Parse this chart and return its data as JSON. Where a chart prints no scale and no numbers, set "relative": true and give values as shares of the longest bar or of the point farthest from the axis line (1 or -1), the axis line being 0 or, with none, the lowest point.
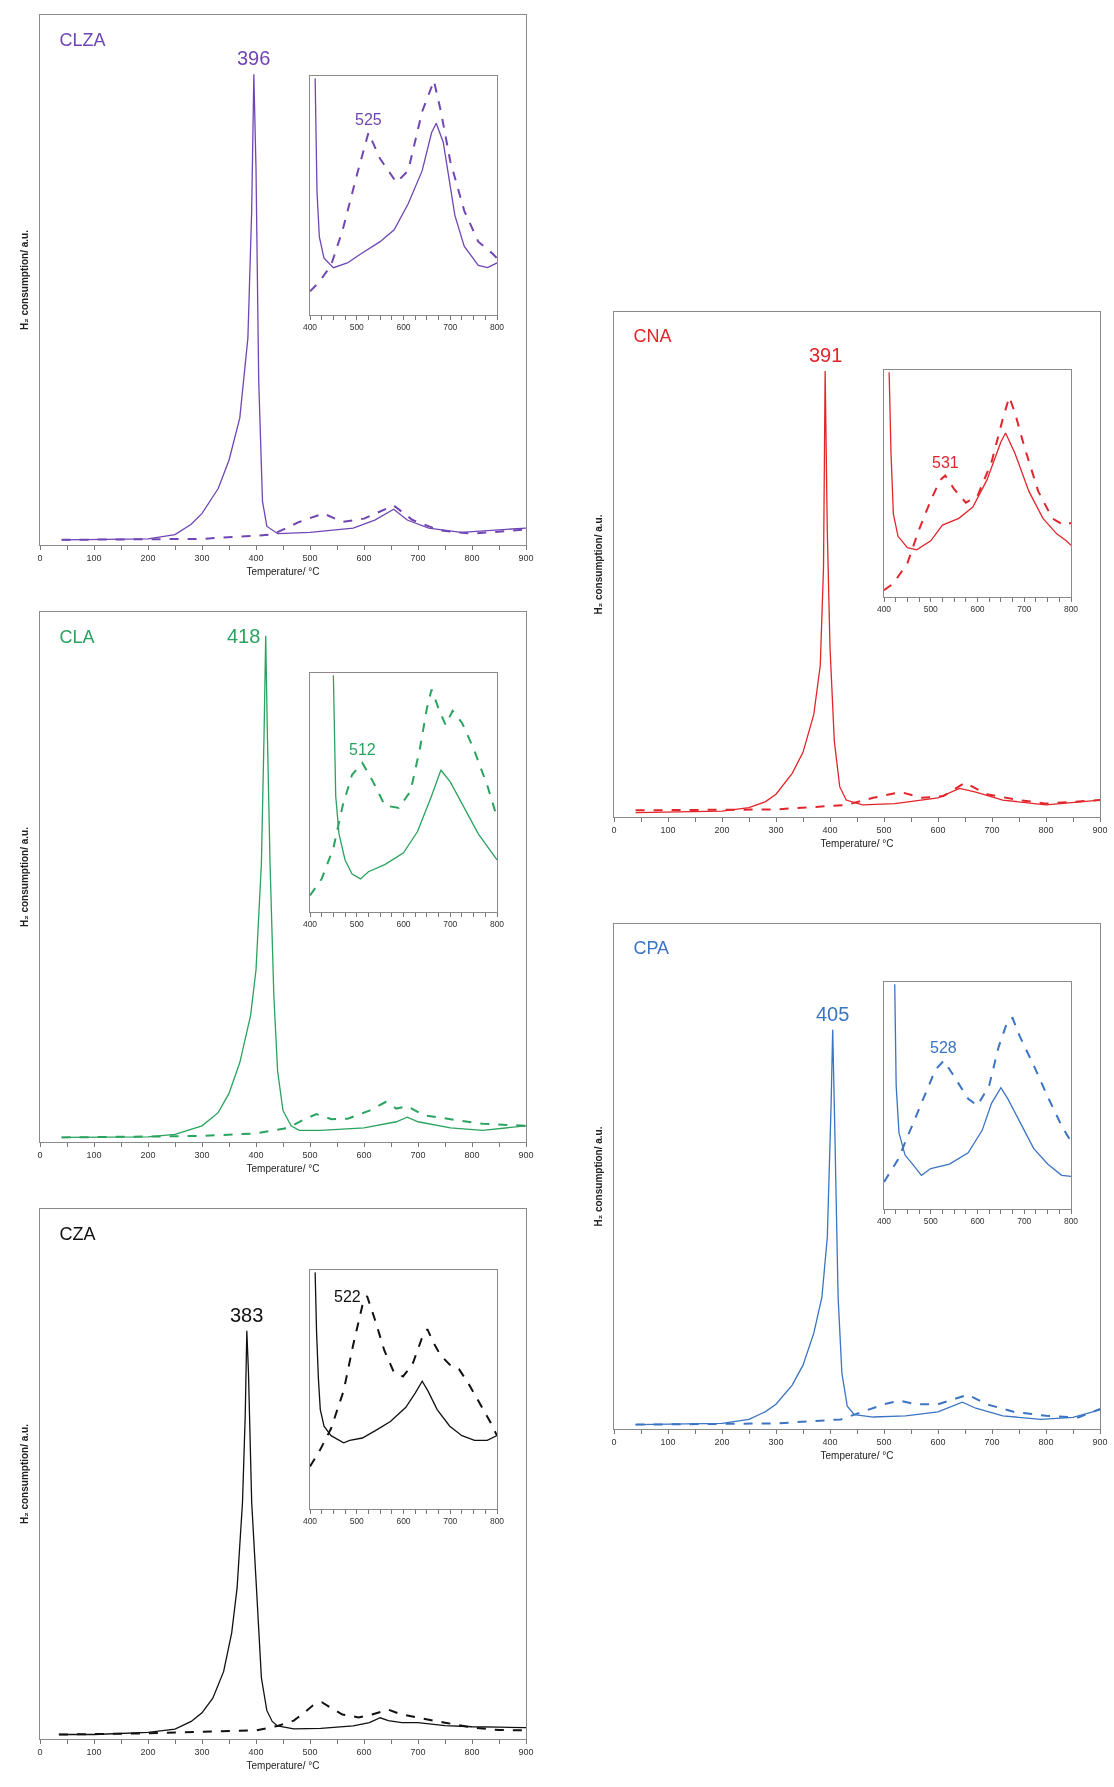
{
  "chart_data": [
    {
      "type": "line",
      "title": "CZA",
      "xlabel": "Temperature/ °C",
      "ylabel": "H₂ consumption/ a.u.",
      "relative": true,
      "xlim": [
        0,
        900
      ],
      "xticks": [
        0,
        {
          "value": 50,
          "label": null
        },
        100,
        {
          "value": 150,
          "label": null
        },
        200,
        {
          "value": 250,
          "label": null
        },
        300,
        {
          "value": 350,
          "label": null
        },
        400,
        {
          "value": 450,
          "label": null
        },
        500,
        {
          "value": 550,
          "label": null
        },
        600,
        {
          "value": 650,
          "label": null
        },
        700,
        {
          "value": 750,
          "label": null
        },
        800,
        {
          "value": 850,
          "label": null
        },
        900
      ],
      "series": [
        {
          "color": "#111111",
          "line_style": "solid",
          "x": [
            35,
            100,
            200,
            250,
            280,
            300,
            320,
            340,
            355,
            365,
            375,
            380,
            383,
            386,
            392,
            400,
            410,
            420,
            430,
            440,
            470,
            520,
            580,
            610,
            630,
            645,
            670,
            700,
            750,
            800,
            850,
            900
          ],
          "values": [
            0.011,
            0.011,
            0.016,
            0.024,
            0.043,
            0.064,
            0.1,
            0.165,
            0.26,
            0.37,
            0.58,
            0.79,
            1,
            0.9,
            0.58,
            0.39,
            0.15,
            0.07,
            0.043,
            0.032,
            0.025,
            0.026,
            0.032,
            0.04,
            0.052,
            0.045,
            0.04,
            0.04,
            0.033,
            0.03,
            0.029,
            0.028
          ]
        },
        {
          "color": "#111111",
          "line_style": "dashed",
          "x": [
            35,
            200,
            300,
            400,
            440,
            470,
            490,
            505,
            522,
            540,
            560,
            590,
            615,
            645,
            665,
            700,
            750,
            800,
            850,
            900
          ],
          "values": [
            0.011,
            0.014,
            0.018,
            0.021,
            0.032,
            0.045,
            0.065,
            0.082,
            0.09,
            0.075,
            0.06,
            0.053,
            0.06,
            0.072,
            0.062,
            0.052,
            0.04,
            0.028,
            0.022,
            0.021
          ]
        }
      ],
      "annotations": [
        {
          "text": "383",
          "x": 383,
          "y": 1
        }
      ]
    },
    {
      "type": "line",
      "relative": true,
      "xlim": [
        400,
        800
      ],
      "xticks": [
        400,
        {
          "value": 425,
          "label": null
        },
        {
          "value": 450,
          "label": null
        },
        {
          "value": 475,
          "label": null
        },
        500,
        {
          "value": 525,
          "label": null
        },
        {
          "value": 550,
          "label": null
        },
        {
          "value": 575,
          "label": null
        },
        600,
        {
          "value": 625,
          "label": null
        },
        {
          "value": 650,
          "label": null
        },
        {
          "value": 675,
          "label": null
        },
        700,
        {
          "value": 725,
          "label": null
        },
        {
          "value": 750,
          "label": null
        },
        {
          "value": 775,
          "label": null
        },
        800
      ],
      "series": [
        {
          "color": "#111111",
          "line_style": "solid",
          "x": [
            411,
            414,
            418,
            422,
            430,
            445,
            472,
            485,
            512,
            539,
            572,
            605,
            625,
            640,
            652,
            672,
            699,
            725,
            752,
            779,
            800
          ],
          "values": [
            1,
            0.75,
            0.55,
            0.42,
            0.35,
            0.31,
            0.28,
            0.29,
            0.3,
            0.33,
            0.37,
            0.43,
            0.49,
            0.54,
            0.5,
            0.42,
            0.35,
            0.31,
            0.29,
            0.29,
            0.31
          ]
        },
        {
          "color": "#111111",
          "line_style": "dashed",
          "x": [
            400,
            419,
            445,
            472,
            492,
            512,
            522,
            539,
            559,
            579,
            599,
            619,
            639,
            651,
            665,
            679,
            699,
            719,
            739,
            765,
            785,
            800
          ],
          "values": [
            0.18,
            0.24,
            0.34,
            0.5,
            0.69,
            0.86,
            0.9,
            0.8,
            0.67,
            0.58,
            0.56,
            0.61,
            0.72,
            0.76,
            0.7,
            0.65,
            0.61,
            0.59,
            0.53,
            0.44,
            0.37,
            0.31
          ]
        }
      ],
      "annotations": [
        {
          "text": "522",
          "x": 522,
          "y": 0.9
        }
      ]
    },
    {
      "type": "line",
      "title": "CLA",
      "xlabel": "Temperature/ °C",
      "ylabel": "H₂ consumption/ a.u.",
      "relative": true,
      "xlim": [
        0,
        900
      ],
      "xticks": [
        0,
        {
          "value": 50,
          "label": null
        },
        100,
        {
          "value": 150,
          "label": null
        },
        200,
        {
          "value": 250,
          "label": null
        },
        300,
        {
          "value": 350,
          "label": null
        },
        400,
        {
          "value": 450,
          "label": null
        },
        500,
        {
          "value": 550,
          "label": null
        },
        600,
        {
          "value": 650,
          "label": null
        },
        700,
        {
          "value": 750,
          "label": null
        },
        800,
        {
          "value": 850,
          "label": null
        },
        900
      ],
      "series": [
        {
          "color": "#2aa35f",
          "line_style": "solid",
          "x": [
            40,
            200,
            250,
            300,
            330,
            350,
            370,
            390,
            400,
            410,
            415,
            418,
            421,
            426,
            433,
            440,
            450,
            465,
            480,
            520,
            600,
            660,
            680,
            700,
            760,
            820,
            900
          ],
          "values": [
            0.009,
            0.01,
            0.015,
            0.032,
            0.058,
            0.096,
            0.157,
            0.25,
            0.34,
            0.55,
            0.81,
            1,
            0.81,
            0.55,
            0.29,
            0.14,
            0.062,
            0.032,
            0.023,
            0.023,
            0.028,
            0.04,
            0.049,
            0.04,
            0.028,
            0.023,
            0.032
          ]
        },
        {
          "color": "#2aa35f",
          "line_style": "dashed",
          "x": [
            40,
            300,
            400,
            460,
            490,
            512,
            540,
            570,
            610,
            640,
            660,
            680,
            710,
            760,
            820,
            900
          ],
          "values": [
            0.009,
            0.012,
            0.017,
            0.028,
            0.045,
            0.055,
            0.045,
            0.046,
            0.062,
            0.079,
            0.066,
            0.071,
            0.053,
            0.045,
            0.036,
            0.032
          ]
        }
      ],
      "annotations": [
        {
          "text": "418",
          "x": 418,
          "y": 1
        }
      ]
    },
    {
      "type": "line",
      "relative": true,
      "xlim": [
        400,
        800
      ],
      "xticks": [
        400,
        {
          "value": 425,
          "label": null
        },
        {
          "value": 450,
          "label": null
        },
        {
          "value": 475,
          "label": null
        },
        500,
        {
          "value": 525,
          "label": null
        },
        {
          "value": 550,
          "label": null
        },
        {
          "value": 575,
          "label": null
        },
        600,
        {
          "value": 625,
          "label": null
        },
        {
          "value": 650,
          "label": null
        },
        {
          "value": 675,
          "label": null
        },
        700,
        {
          "value": 725,
          "label": null
        },
        {
          "value": 750,
          "label": null
        },
        {
          "value": 775,
          "label": null
        },
        800
      ],
      "series": [
        {
          "color": "#2aa35f",
          "line_style": "solid",
          "x": [
            450,
            455,
            462,
            475,
            490,
            508,
            525,
            560,
            600,
            630,
            660,
            680,
            700,
            730,
            760,
            800
          ],
          "values": [
            1,
            0.49,
            0.33,
            0.22,
            0.16,
            0.14,
            0.17,
            0.2,
            0.25,
            0.34,
            0.49,
            0.6,
            0.55,
            0.44,
            0.33,
            0.22
          ]
        },
        {
          "color": "#2aa35f",
          "line_style": "dashed",
          "x": [
            400,
            425,
            450,
            470,
            490,
            512,
            535,
            560,
            590,
            615,
            635,
            650,
            660,
            675,
            690,
            705,
            725,
            750,
            780,
            800
          ],
          "values": [
            0.07,
            0.14,
            0.27,
            0.45,
            0.58,
            0.63,
            0.55,
            0.45,
            0.44,
            0.51,
            0.69,
            0.86,
            0.94,
            0.86,
            0.79,
            0.85,
            0.8,
            0.69,
            0.53,
            0.4
          ]
        }
      ],
      "annotations": [
        {
          "text": "512",
          "x": 512,
          "y": 0.63
        }
      ]
    },
    {
      "type": "line",
      "title": "CLZA",
      "xlabel": "Temperature/ °C",
      "ylabel": "H₂ consumption/ a.u.",
      "relative": true,
      "xlim": [
        0,
        900
      ],
      "xticks": [
        0,
        {
          "value": 50,
          "label": null
        },
        100,
        {
          "value": 150,
          "label": null
        },
        200,
        {
          "value": 250,
          "label": null
        },
        300,
        {
          "value": 350,
          "label": null
        },
        400,
        {
          "value": 450,
          "label": null
        },
        500,
        {
          "value": 550,
          "label": null
        },
        600,
        {
          "value": 650,
          "label": null
        },
        700,
        {
          "value": 750,
          "label": null
        },
        800,
        {
          "value": 850,
          "label": null
        },
        900
      ],
      "series": [
        {
          "color": "#7046b4",
          "line_style": "solid",
          "x": [
            40,
            200,
            250,
            280,
            300,
            330,
            350,
            370,
            385,
            392,
            396,
            400,
            405,
            412,
            420,
            440,
            500,
            580,
            620,
            655,
            680,
            720,
            780,
            900
          ],
          "values": [
            0.011,
            0.013,
            0.022,
            0.044,
            0.067,
            0.12,
            0.18,
            0.27,
            0.44,
            0.71,
            1,
            0.8,
            0.35,
            0.093,
            0.04,
            0.024,
            0.027,
            0.036,
            0.053,
            0.076,
            0.053,
            0.036,
            0.027,
            0.036
          ]
        },
        {
          "color": "#7046b4",
          "line_style": "dashed",
          "x": [
            40,
            300,
            430,
            480,
            525,
            560,
            600,
            655,
            690,
            740,
            800,
            900
          ],
          "values": [
            0.011,
            0.013,
            0.022,
            0.049,
            0.067,
            0.049,
            0.056,
            0.084,
            0.053,
            0.031,
            0.024,
            0.033
          ]
        }
      ],
      "annotations": [
        {
          "text": "396",
          "x": 396,
          "y": 1
        }
      ]
    },
    {
      "type": "line",
      "relative": true,
      "xlim": [
        400,
        800
      ],
      "xticks": [
        400,
        {
          "value": 425,
          "label": null
        },
        {
          "value": 450,
          "label": null
        },
        {
          "value": 475,
          "label": null
        },
        500,
        {
          "value": 525,
          "label": null
        },
        {
          "value": 550,
          "label": null
        },
        {
          "value": 575,
          "label": null
        },
        600,
        {
          "value": 625,
          "label": null
        },
        {
          "value": 650,
          "label": null
        },
        {
          "value": 675,
          "label": null
        },
        700,
        {
          "value": 725,
          "label": null
        },
        {
          "value": 750,
          "label": null
        },
        {
          "value": 775,
          "label": null
        },
        800
      ],
      "series": [
        {
          "color": "#7046b4",
          "line_style": "solid",
          "x": [
            411,
            415,
            420,
            430,
            450,
            480,
            510,
            550,
            580,
            610,
            640,
            660,
            670,
            685,
            710,
            730,
            760,
            780,
            800
          ],
          "values": [
            1,
            0.52,
            0.33,
            0.24,
            0.2,
            0.22,
            0.26,
            0.31,
            0.36,
            0.47,
            0.61,
            0.77,
            0.81,
            0.73,
            0.42,
            0.29,
            0.21,
            0.2,
            0.22
          ]
        },
        {
          "color": "#7046b4",
          "line_style": "dashed",
          "x": [
            400,
            420,
            445,
            470,
            500,
            525,
            550,
            585,
            610,
            640,
            665,
            680,
            700,
            730,
            760,
            790,
            800
          ],
          "values": [
            0.1,
            0.14,
            0.21,
            0.36,
            0.59,
            0.77,
            0.66,
            0.56,
            0.61,
            0.86,
            0.99,
            0.86,
            0.65,
            0.44,
            0.31,
            0.26,
            0.24
          ]
        }
      ],
      "annotations": [
        {
          "text": "525",
          "x": 525,
          "y": 0.77
        }
      ]
    },
    {
      "type": "line",
      "title": "CPA",
      "xlabel": "Temperature/ °C",
      "ylabel": "H₂ consumption/ a.u.",
      "relative": true,
      "xlim": [
        0,
        900
      ],
      "xticks": [
        0,
        {
          "value": 50,
          "label": null
        },
        100,
        {
          "value": 150,
          "label": null
        },
        200,
        {
          "value": 250,
          "label": null
        },
        300,
        {
          "value": 350,
          "label": null
        },
        400,
        {
          "value": 450,
          "label": null
        },
        500,
        {
          "value": 550,
          "label": null
        },
        600,
        {
          "value": 650,
          "label": null
        },
        700,
        {
          "value": 750,
          "label": null
        },
        800,
        {
          "value": 850,
          "label": null
        },
        900
      ],
      "series": [
        {
          "color": "#3b74c2",
          "line_style": "solid",
          "x": [
            40,
            200,
            250,
            280,
            300,
            330,
            350,
            370,
            385,
            395,
            402,
            405,
            408,
            415,
            422,
            432,
            445,
            480,
            540,
            600,
            645,
            670,
            720,
            790,
            850,
            900
          ],
          "values": [
            0.011,
            0.014,
            0.024,
            0.043,
            0.062,
            0.11,
            0.16,
            0.24,
            0.33,
            0.48,
            0.81,
            1,
            0.81,
            0.33,
            0.14,
            0.057,
            0.036,
            0.03,
            0.033,
            0.043,
            0.067,
            0.052,
            0.033,
            0.024,
            0.029,
            0.048
          ]
        },
        {
          "color": "#3b74c2",
          "line_style": "dashed",
          "x": [
            40,
            300,
            420,
            460,
            500,
            528,
            560,
            600,
            655,
            690,
            740,
            800,
            860,
            900
          ],
          "values": [
            0.011,
            0.014,
            0.024,
            0.043,
            0.062,
            0.071,
            0.062,
            0.062,
            0.086,
            0.062,
            0.043,
            0.033,
            0.029,
            0.05
          ]
        }
      ],
      "annotations": [
        {
          "text": "405",
          "x": 405,
          "y": 1
        }
      ]
    },
    {
      "type": "line",
      "relative": true,
      "xlim": [
        400,
        800
      ],
      "xticks": [
        400,
        {
          "value": 425,
          "label": null
        },
        {
          "value": 450,
          "label": null
        },
        {
          "value": 475,
          "label": null
        },
        500,
        {
          "value": 525,
          "label": null
        },
        {
          "value": 550,
          "label": null
        },
        {
          "value": 575,
          "label": null
        },
        600,
        {
          "value": 625,
          "label": null
        },
        {
          "value": 650,
          "label": null
        },
        {
          "value": 675,
          "label": null
        },
        700,
        {
          "value": 725,
          "label": null
        },
        {
          "value": 750,
          "label": null
        },
        {
          "value": 775,
          "label": null
        },
        800
      ],
      "series": [
        {
          "color": "#3b74c2",
          "line_style": "solid",
          "x": [
            423,
            426,
            432,
            445,
            465,
            480,
            500,
            540,
            580,
            610,
            630,
            650,
            665,
            690,
            720,
            750,
            780,
            800
          ],
          "values": [
            1,
            0.55,
            0.34,
            0.24,
            0.19,
            0.15,
            0.18,
            0.2,
            0.25,
            0.35,
            0.47,
            0.54,
            0.49,
            0.39,
            0.27,
            0.2,
            0.15,
            0.145
          ]
        },
        {
          "color": "#3b74c2",
          "line_style": "dashed",
          "x": [
            400,
            430,
            460,
            490,
            510,
            528,
            550,
            580,
            600,
            625,
            645,
            665,
            675,
            690,
            720,
            750,
            780,
            800
          ],
          "values": [
            0.12,
            0.22,
            0.37,
            0.52,
            0.62,
            0.66,
            0.59,
            0.49,
            0.46,
            0.55,
            0.72,
            0.84,
            0.85,
            0.77,
            0.64,
            0.5,
            0.37,
            0.3
          ]
        }
      ],
      "annotations": [
        {
          "text": "528",
          "x": 528,
          "y": 0.66
        }
      ]
    },
    {
      "type": "line",
      "title": "CNA",
      "xlabel": "Temperature/ °C",
      "ylabel": "H₂ consumption/ a.u.",
      "relative": true,
      "xlim": [
        0,
        900
      ],
      "xticks": [
        0,
        {
          "value": 50,
          "label": null
        },
        100,
        {
          "value": 150,
          "label": null
        },
        200,
        {
          "value": 250,
          "label": null
        },
        300,
        {
          "value": 350,
          "label": null
        },
        400,
        {
          "value": 450,
          "label": null
        },
        500,
        {
          "value": 550,
          "label": null
        },
        600,
        {
          "value": 650,
          "label": null
        },
        700,
        {
          "value": 750,
          "label": null
        },
        800,
        {
          "value": 850,
          "label": null
        },
        900
      ],
      "series": [
        {
          "color": "#e2252b",
          "line_style": "solid",
          "x": [
            40,
            200,
            250,
            280,
            300,
            330,
            350,
            370,
            382,
            388,
            391,
            395,
            400,
            408,
            418,
            430,
            460,
            520,
            600,
            640,
            670,
            720,
            800,
            900
          ],
          "values": [
            0.01,
            0.013,
            0.021,
            0.034,
            0.051,
            0.098,
            0.145,
            0.23,
            0.34,
            0.56,
            1,
            0.64,
            0.38,
            0.17,
            0.068,
            0.038,
            0.027,
            0.03,
            0.043,
            0.064,
            0.056,
            0.038,
            0.027,
            0.038
          ]
        },
        {
          "color": "#e2252b",
          "line_style": "dashed",
          "x": [
            40,
            300,
            430,
            480,
            531,
            570,
            610,
            650,
            690,
            750,
            800,
            900
          ],
          "values": [
            0.015,
            0.017,
            0.027,
            0.043,
            0.056,
            0.043,
            0.047,
            0.077,
            0.051,
            0.038,
            0.03,
            0.038
          ]
        }
      ],
      "annotations": [
        {
          "text": "391",
          "x": 391,
          "y": 1
        }
      ]
    },
    {
      "type": "line",
      "relative": true,
      "xlim": [
        400,
        800
      ],
      "xticks": [
        400,
        {
          "value": 425,
          "label": null
        },
        {
          "value": 450,
          "label": null
        },
        {
          "value": 475,
          "label": null
        },
        500,
        {
          "value": 525,
          "label": null
        },
        {
          "value": 550,
          "label": null
        },
        {
          "value": 575,
          "label": null
        },
        600,
        {
          "value": 625,
          "label": null
        },
        {
          "value": 650,
          "label": null
        },
        {
          "value": 675,
          "label": null
        },
        700,
        {
          "value": 725,
          "label": null
        },
        {
          "value": 750,
          "label": null
        },
        {
          "value": 775,
          "label": null
        },
        800
      ],
      "series": [
        {
          "color": "#e2252b",
          "line_style": "solid",
          "x": [
            411,
            415,
            420,
            430,
            450,
            470,
            500,
            525,
            560,
            590,
            620,
            650,
            660,
            680,
            710,
            740,
            770,
            790,
            800
          ],
          "values": [
            1,
            0.64,
            0.37,
            0.27,
            0.22,
            0.21,
            0.25,
            0.32,
            0.35,
            0.4,
            0.52,
            0.69,
            0.73,
            0.64,
            0.47,
            0.35,
            0.28,
            0.25,
            0.23
          ]
        },
        {
          "color": "#e2252b",
          "line_style": "dashed",
          "x": [
            400,
            420,
            450,
            475,
            500,
            520,
            531,
            550,
            575,
            600,
            630,
            655,
            668,
            680,
            700,
            730,
            760,
            785,
            800
          ],
          "values": [
            0.03,
            0.06,
            0.15,
            0.3,
            0.43,
            0.52,
            0.54,
            0.48,
            0.42,
            0.45,
            0.6,
            0.8,
            0.89,
            0.82,
            0.67,
            0.47,
            0.35,
            0.32,
            0.33
          ]
        }
      ],
      "annotations": [
        {
          "text": "531",
          "x": 531,
          "y": 0.54
        }
      ]
    }
  ]
}
